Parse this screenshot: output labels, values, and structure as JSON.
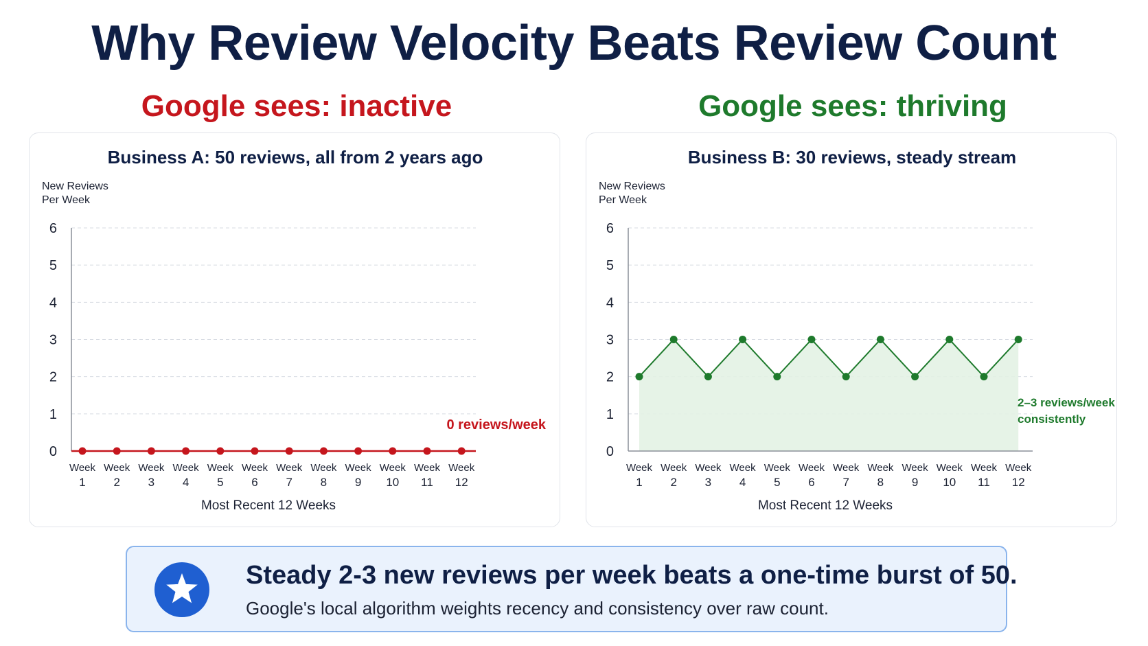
{
  "title": "Why Review Velocity Beats Review Count",
  "chart_data": [
    {
      "type": "line",
      "heading": "Google sees: inactive",
      "title": "Business A: 50 reviews, all from 2 years ago",
      "ylabel": "New Reviews Per Week",
      "xlabel": "Most Recent 12 Weeks",
      "categories": [
        "Week 1",
        "Week 2",
        "Week 3",
        "Week 4",
        "Week 5",
        "Week 6",
        "Week 7",
        "Week 8",
        "Week 9",
        "Week 10",
        "Week 11",
        "Week 12"
      ],
      "series": [
        {
          "values": [
            0,
            0,
            0,
            0,
            0,
            0,
            0,
            0,
            0,
            0,
            0,
            0
          ]
        }
      ],
      "ylim": [
        0,
        6
      ],
      "yticks": [
        0,
        1,
        2,
        3,
        4,
        5,
        6
      ],
      "grid": true,
      "area_fill": false,
      "annotation": "0 reviews/week",
      "color": "#c5161d"
    },
    {
      "type": "area",
      "heading": "Google sees: thriving",
      "title": "Business B: 30 reviews, steady stream",
      "ylabel": "New Reviews Per Week",
      "xlabel": "Most Recent 12 Weeks",
      "categories": [
        "Week 1",
        "Week 2",
        "Week 3",
        "Week 4",
        "Week 5",
        "Week 6",
        "Week 7",
        "Week 8",
        "Week 9",
        "Week 10",
        "Week 11",
        "Week 12"
      ],
      "series": [
        {
          "values": [
            2,
            3,
            2,
            3,
            2,
            3,
            2,
            3,
            2,
            3,
            2,
            3
          ]
        }
      ],
      "ylim": [
        0,
        6
      ],
      "yticks": [
        0,
        1,
        2,
        3,
        4,
        5,
        6
      ],
      "grid": true,
      "area_fill": true,
      "annotation": "2–3 reviews/week consistently",
      "color": "#1e7a2c"
    }
  ],
  "callout": {
    "icon": "star-icon",
    "headline": "Steady 2-3 new reviews per week beats a one-time burst of 50.",
    "subtext": "Google's local algorithm weights recency and consistency over raw count."
  }
}
